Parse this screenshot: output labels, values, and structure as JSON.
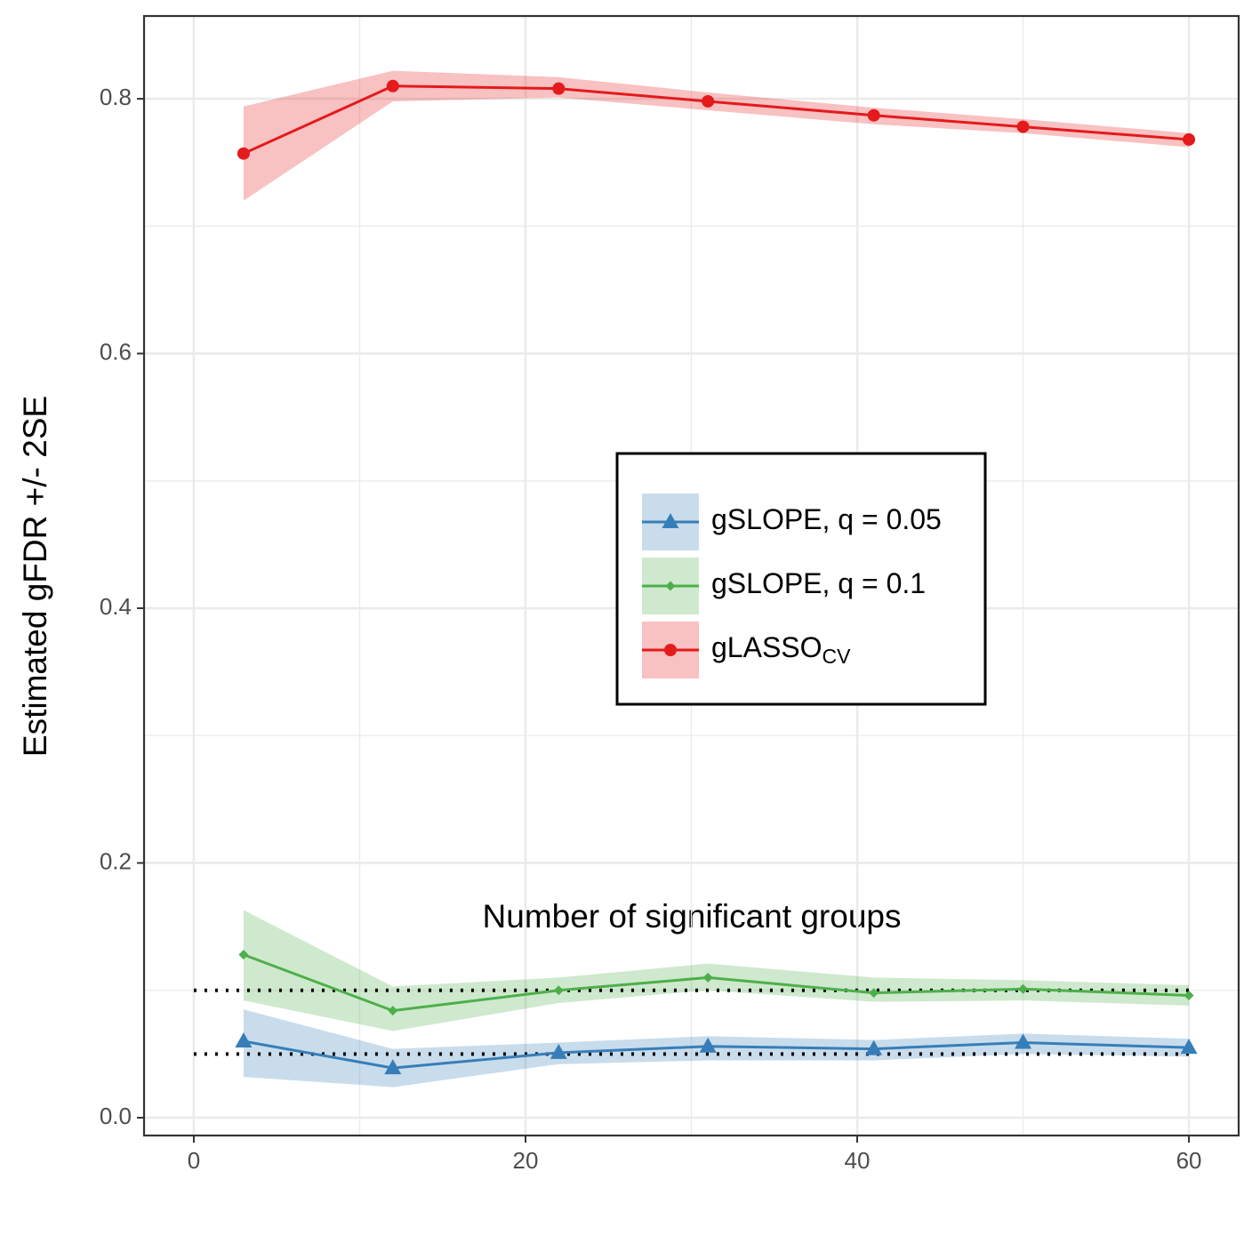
{
  "chart_data": {
    "type": "line",
    "x_label": "Number of significant groups",
    "y_label": "Estimated gFDR +/- 2SE",
    "x": [
      3,
      12,
      22,
      31,
      41,
      50,
      60
    ],
    "series": [
      {
        "name": "gSLOPE, q = 0.05",
        "color": "#377eb8",
        "marker": "triangle",
        "values": [
          0.06,
          0.039,
          0.051,
          0.056,
          0.054,
          0.059,
          0.055
        ],
        "upper": [
          0.085,
          0.054,
          0.059,
          0.064,
          0.061,
          0.066,
          0.062
        ],
        "lower": [
          0.032,
          0.024,
          0.042,
          0.045,
          0.045,
          0.05,
          0.048
        ]
      },
      {
        "name": "gSLOPE, q = 0.1",
        "color": "#4daf4a",
        "marker": "diamond",
        "values": [
          0.128,
          0.084,
          0.1,
          0.11,
          0.098,
          0.101,
          0.096
        ],
        "upper": [
          0.163,
          0.103,
          0.11,
          0.121,
          0.11,
          0.108,
          0.104
        ],
        "lower": [
          0.092,
          0.068,
          0.09,
          0.1,
          0.091,
          0.092,
          0.088
        ]
      },
      {
        "name": "gLASSO",
        "name_subscript": "CV",
        "color": "#e41a1c",
        "marker": "circle",
        "values": [
          0.757,
          0.81,
          0.808,
          0.798,
          0.787,
          0.778,
          0.768
        ],
        "upper": [
          0.794,
          0.822,
          0.817,
          0.805,
          0.793,
          0.784,
          0.773
        ],
        "lower": [
          0.72,
          0.798,
          0.801,
          0.791,
          0.78,
          0.773,
          0.762
        ]
      }
    ],
    "reference_lines": [
      0.05,
      0.1
    ],
    "reference_x": [
      0,
      60
    ],
    "xlim": [
      -3,
      63
    ],
    "ylim": [
      -0.014,
      0.865
    ],
    "xticks": [
      0,
      20,
      40,
      60
    ],
    "yticks": [
      {
        "value": 0,
        "label": "0.0"
      },
      0.2,
      0.4,
      0.6,
      0.8
    ],
    "minor_xticks": [
      10,
      30,
      50
    ],
    "minor_yticks": [
      0.1,
      0.3,
      0.5,
      0.7
    ],
    "grid": true,
    "legend_position": "center"
  }
}
